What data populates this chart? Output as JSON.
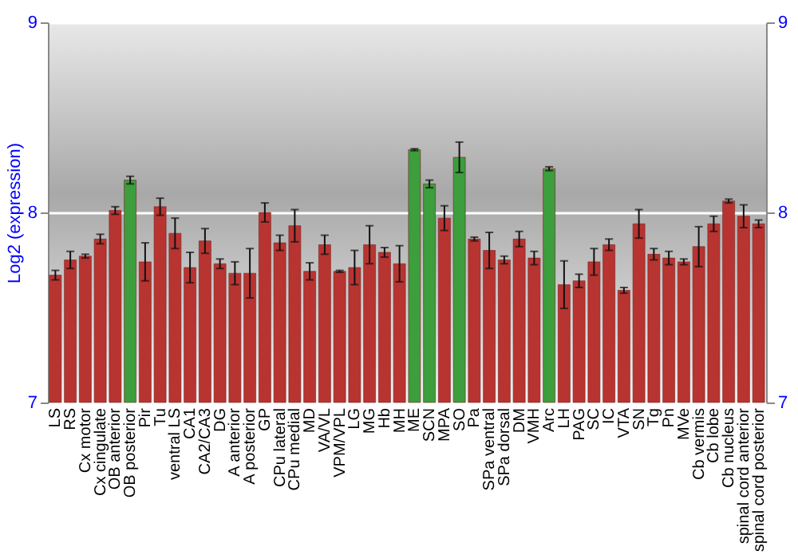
{
  "chart_data": {
    "type": "bar",
    "ylabel": "Log2 (expression)",
    "categories": [
      "LS",
      "RS",
      "Cx motor",
      "Cx cingulate",
      "OB anterior",
      "OB posterior",
      "Pir",
      "Tu",
      "ventral LS",
      "CA1",
      "CA2/CA3",
      "DG",
      "A anterior",
      "A posterior",
      "GP",
      "CPu lateral",
      "CPu medial",
      "MD",
      "VA/VL",
      "VPM/VPL",
      "LG",
      "MG",
      "Hb",
      "MH",
      "ME",
      "SCN",
      "MPA",
      "SO",
      "Pa",
      "SPa ventral",
      "SPa dorsal",
      "DM",
      "VMH",
      "Arc",
      "LH",
      "PAG",
      "SC",
      "IC",
      "VTA",
      "SN",
      "Tg",
      "Pn",
      "MVe",
      "Cb vermis",
      "Cb lobe",
      "Cb nucleus",
      "spinal cord anterior",
      "spinal cord posterior"
    ],
    "values": [
      7.67,
      7.75,
      7.77,
      7.86,
      8.01,
      8.17,
      7.74,
      8.03,
      7.89,
      7.71,
      7.85,
      7.73,
      7.68,
      7.68,
      8.0,
      7.84,
      7.93,
      7.69,
      7.83,
      7.69,
      7.71,
      7.83,
      7.79,
      7.73,
      8.33,
      8.15,
      7.97,
      8.29,
      7.86,
      7.8,
      7.75,
      7.86,
      7.76,
      8.23,
      7.62,
      7.64,
      7.74,
      7.83,
      7.59,
      7.94,
      7.78,
      7.76,
      7.74,
      7.82,
      7.94,
      8.06,
      7.98,
      7.94
    ],
    "errors": [
      0.025,
      0.045,
      0.01,
      0.025,
      0.02,
      0.02,
      0.1,
      0.045,
      0.08,
      0.08,
      0.065,
      0.025,
      0.06,
      0.13,
      0.05,
      0.04,
      0.085,
      0.045,
      0.05,
      0.005,
      0.09,
      0.1,
      0.025,
      0.095,
      0.005,
      0.02,
      0.065,
      0.08,
      0.01,
      0.095,
      0.02,
      0.04,
      0.035,
      0.01,
      0.125,
      0.035,
      0.07,
      0.03,
      0.015,
      0.075,
      0.03,
      0.035,
      0.015,
      0.105,
      0.04,
      0.01,
      0.06,
      0.02
    ],
    "colors": [
      "#b83431",
      "#b83431",
      "#b83431",
      "#b83431",
      "#b83431",
      "#3c9e3c",
      "#b83431",
      "#b83431",
      "#b83431",
      "#b83431",
      "#b83431",
      "#b83431",
      "#b83431",
      "#b83431",
      "#b83431",
      "#b83431",
      "#b83431",
      "#b83431",
      "#b83431",
      "#b83431",
      "#b83431",
      "#b83431",
      "#b83431",
      "#b83431",
      "#3c9e3c",
      "#3c9e3c",
      "#b83431",
      "#3c9e3c",
      "#b83431",
      "#b83431",
      "#b83431",
      "#b83431",
      "#b83431",
      "#3c9e3c",
      "#b83431",
      "#b83431",
      "#b83431",
      "#b83431",
      "#b83431",
      "#b83431",
      "#b83431",
      "#b83431",
      "#b83431",
      "#b83431",
      "#b83431",
      "#b83431",
      "#b83431",
      "#b83431"
    ],
    "ylim": [
      7,
      9
    ],
    "yticks": [
      7,
      8,
      9
    ],
    "y2lim": [
      7,
      9
    ],
    "y2ticks": [
      7,
      8,
      9
    ],
    "grid": "y"
  }
}
